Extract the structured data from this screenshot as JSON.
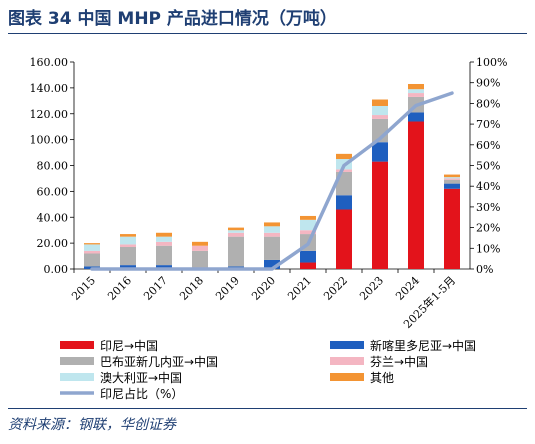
{
  "header": {
    "title": "图表 34   中国 MHP 产品进口情况（万吨）"
  },
  "footer": {
    "source": "资料来源：钢联，华创证券"
  },
  "chart_data": {
    "type": "bar",
    "stacked": true,
    "title": "图表 34   中国 MHP 产品进口情况（万吨）",
    "categories": [
      "2015",
      "2016",
      "2017",
      "2018",
      "2019",
      "2020",
      "2021",
      "2022",
      "2023",
      "2024",
      "2025年1-5月"
    ],
    "ylim": [
      0,
      160
    ],
    "yticks": [
      "0.00",
      "20.00",
      "40.00",
      "60.00",
      "80.00",
      "100.00",
      "120.00",
      "140.00",
      "160.00"
    ],
    "y2lim": [
      0,
      100
    ],
    "y2ticks": [
      "0%",
      "10%",
      "20%",
      "30%",
      "40%",
      "50%",
      "60%",
      "70%",
      "80%",
      "90%",
      "100%"
    ],
    "grid": false,
    "legend_position": "bottom",
    "series": [
      {
        "name": "印尼→中国",
        "color": "#e3131b",
        "values": [
          0,
          0,
          0,
          0,
          0,
          0,
          5,
          46,
          83,
          114,
          62
        ]
      },
      {
        "name": "新喀里多尼亚→中国",
        "color": "#1f5fbf",
        "values": [
          2,
          3,
          3,
          0,
          2,
          7,
          9,
          11,
          15,
          7,
          4
        ]
      },
      {
        "name": "巴布亚新几内亚→中国",
        "color": "#b0b0b0",
        "values": [
          10,
          14,
          15,
          14,
          23,
          18,
          13,
          18,
          18,
          12,
          3
        ]
      },
      {
        "name": "芬兰→中国",
        "color": "#f4b6c2",
        "values": [
          2,
          2,
          3,
          4,
          3,
          3,
          3,
          2,
          3,
          3,
          1
        ]
      },
      {
        "name": "澳大利亚→中国",
        "color": "#bfe6ee",
        "values": [
          5,
          6,
          4,
          0,
          2,
          5,
          8,
          8,
          7,
          3,
          1
        ]
      },
      {
        "name": "其他",
        "color": "#f39433",
        "values": [
          1,
          2,
          3,
          3,
          2,
          3,
          3,
          4,
          5,
          4,
          2
        ]
      }
    ],
    "line": {
      "name": "印尼占比（%）",
      "color": "#8fa6cf",
      "axis": "right",
      "values": [
        0,
        0,
        0,
        0,
        0,
        0,
        12,
        50,
        63,
        79,
        85
      ]
    }
  }
}
